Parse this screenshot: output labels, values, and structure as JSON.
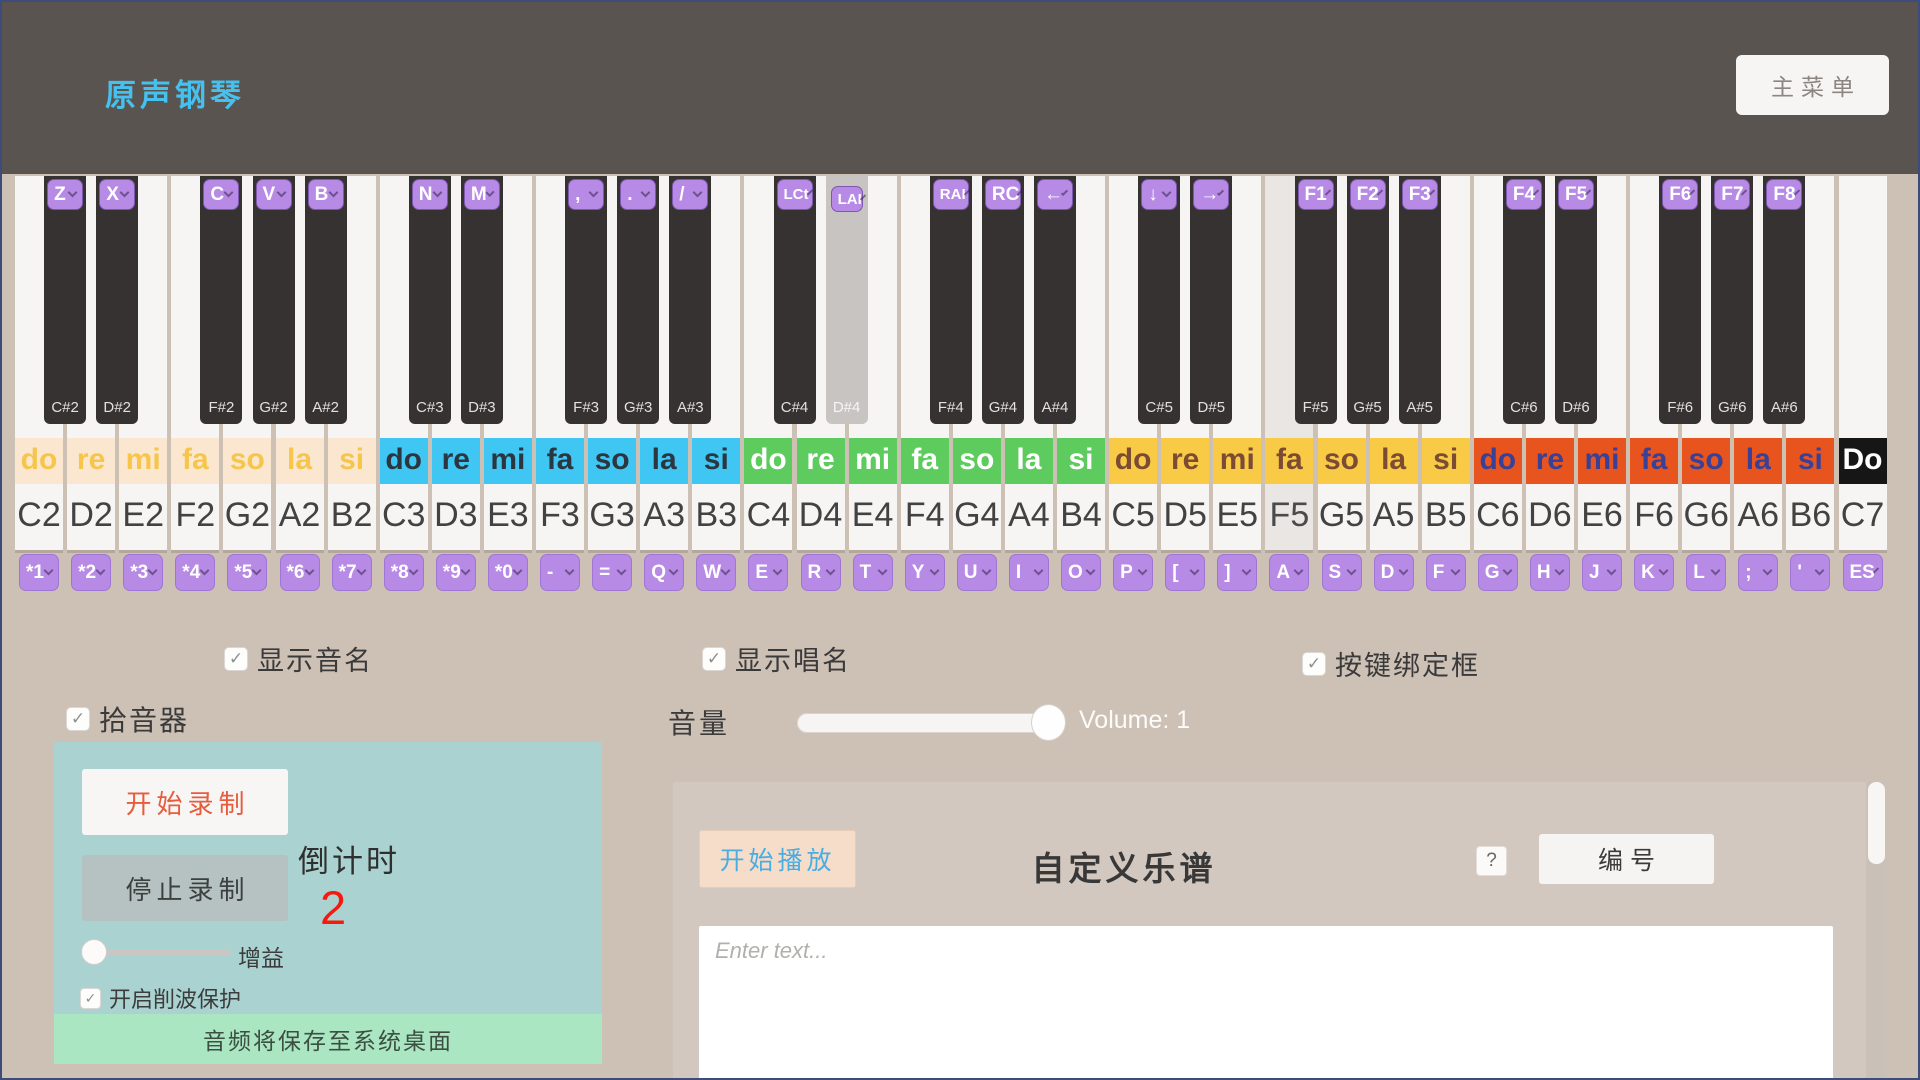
{
  "header": {
    "title": "原声钢琴",
    "menu_button": "主菜单",
    "title_color": "#45c1ef",
    "bg": "#5a5451"
  },
  "piano": {
    "white_keys": [
      {
        "note": "C2",
        "solfege": "do",
        "octave": 2,
        "badge": "*1"
      },
      {
        "note": "D2",
        "solfege": "re",
        "octave": 2,
        "badge": "*2"
      },
      {
        "note": "E2",
        "solfege": "mi",
        "octave": 2,
        "badge": "*3"
      },
      {
        "note": "F2",
        "solfege": "fa",
        "octave": 2,
        "badge": "*4"
      },
      {
        "note": "G2",
        "solfege": "so",
        "octave": 2,
        "badge": "*5"
      },
      {
        "note": "A2",
        "solfege": "la",
        "octave": 2,
        "badge": "*6"
      },
      {
        "note": "B2",
        "solfege": "si",
        "octave": 2,
        "badge": "*7"
      },
      {
        "note": "C3",
        "solfege": "do",
        "octave": 3,
        "badge": "*8"
      },
      {
        "note": "D3",
        "solfege": "re",
        "octave": 3,
        "badge": "*9"
      },
      {
        "note": "E3",
        "solfege": "mi",
        "octave": 3,
        "badge": "*0"
      },
      {
        "note": "F3",
        "solfege": "fa",
        "octave": 3,
        "badge": "-"
      },
      {
        "note": "G3",
        "solfege": "so",
        "octave": 3,
        "badge": "="
      },
      {
        "note": "A3",
        "solfege": "la",
        "octave": 3,
        "badge": "Q"
      },
      {
        "note": "B3",
        "solfege": "si",
        "octave": 3,
        "badge": "W"
      },
      {
        "note": "C4",
        "solfege": "do",
        "octave": 4,
        "badge": "E"
      },
      {
        "note": "D4",
        "solfege": "re",
        "octave": 4,
        "badge": "R"
      },
      {
        "note": "E4",
        "solfege": "mi",
        "octave": 4,
        "badge": "T"
      },
      {
        "note": "F4",
        "solfege": "fa",
        "octave": 4,
        "badge": "Y"
      },
      {
        "note": "G4",
        "solfege": "so",
        "octave": 4,
        "badge": "U"
      },
      {
        "note": "A4",
        "solfege": "la",
        "octave": 4,
        "badge": "I"
      },
      {
        "note": "B4",
        "solfege": "si",
        "octave": 4,
        "badge": "O"
      },
      {
        "note": "C5",
        "solfege": "do",
        "octave": 5,
        "badge": "P"
      },
      {
        "note": "D5",
        "solfege": "re",
        "octave": 5,
        "badge": "["
      },
      {
        "note": "E5",
        "solfege": "mi",
        "octave": 5,
        "badge": "]"
      },
      {
        "note": "F5",
        "solfege": "fa",
        "octave": 5,
        "badge": "A",
        "pressed": true
      },
      {
        "note": "G5",
        "solfege": "so",
        "octave": 5,
        "badge": "S"
      },
      {
        "note": "A5",
        "solfege": "la",
        "octave": 5,
        "badge": "D"
      },
      {
        "note": "B5",
        "solfege": "si",
        "octave": 5,
        "badge": "F"
      },
      {
        "note": "C6",
        "solfege": "do",
        "octave": 6,
        "badge": "G"
      },
      {
        "note": "D6",
        "solfege": "re",
        "octave": 6,
        "badge": "H"
      },
      {
        "note": "E6",
        "solfege": "mi",
        "octave": 6,
        "badge": "J"
      },
      {
        "note": "F6",
        "solfege": "fa",
        "octave": 6,
        "badge": "K"
      },
      {
        "note": "G6",
        "solfege": "so",
        "octave": 6,
        "badge": "L"
      },
      {
        "note": "A6",
        "solfege": "la",
        "octave": 6,
        "badge": ";"
      },
      {
        "note": "B6",
        "solfege": "si",
        "octave": 6,
        "badge": "'"
      },
      {
        "note": "C7",
        "solfege": "Do",
        "octave": 7,
        "badge": "ES"
      }
    ],
    "black_keys": [
      {
        "note": "C#2",
        "badge": "Z",
        "boundary": 0
      },
      {
        "note": "D#2",
        "badge": "X",
        "boundary": 1
      },
      {
        "note": "F#2",
        "badge": "C",
        "boundary": 3
      },
      {
        "note": "G#2",
        "badge": "V",
        "boundary": 4
      },
      {
        "note": "A#2",
        "badge": "B",
        "boundary": 5
      },
      {
        "note": "C#3",
        "badge": "N",
        "boundary": 7
      },
      {
        "note": "D#3",
        "badge": "M",
        "boundary": 8
      },
      {
        "note": "F#3",
        "badge": ",",
        "boundary": 10
      },
      {
        "note": "G#3",
        "badge": ".",
        "boundary": 11
      },
      {
        "note": "A#3",
        "badge": "/",
        "boundary": 12
      },
      {
        "note": "C#4",
        "badge": "LCt",
        "boundary": 14
      },
      {
        "note": "D#4",
        "badge": "LAI",
        "boundary": 15,
        "pressed": true
      },
      {
        "note": "F#4",
        "badge": "RAI",
        "boundary": 17
      },
      {
        "note": "G#4",
        "badge": "RC",
        "boundary": 18
      },
      {
        "note": "A#4",
        "badge": "←",
        "boundary": 19
      },
      {
        "note": "C#5",
        "badge": "↓",
        "boundary": 21
      },
      {
        "note": "D#5",
        "badge": "→",
        "boundary": 22
      },
      {
        "note": "F#5",
        "badge": "F1",
        "boundary": 24
      },
      {
        "note": "G#5",
        "badge": "F2",
        "boundary": 25
      },
      {
        "note": "A#5",
        "badge": "F3",
        "boundary": 26
      },
      {
        "note": "C#6",
        "badge": "F4",
        "boundary": 28
      },
      {
        "note": "D#6",
        "badge": "F5",
        "boundary": 29
      },
      {
        "note": "F#6",
        "badge": "F6",
        "boundary": 31
      },
      {
        "note": "G#6",
        "badge": "F7",
        "boundary": 32
      },
      {
        "note": "A#6",
        "badge": "F8",
        "boundary": 33
      }
    ],
    "octave_styles": {
      "2": {
        "bg": "#fbe7cf",
        "color": "#f6c54a"
      },
      "3": {
        "bg": "#3fc6f2",
        "color": "#2b3640"
      },
      "4": {
        "bg": "#5ecb5e",
        "color": "#ffffff"
      },
      "5": {
        "bg": "#f8ca45",
        "color": "#7b4b33"
      },
      "6": {
        "bg": "#e8541e",
        "color": "#3a4096"
      },
      "7": {
        "bg": "#161616",
        "color": "#ffffff"
      }
    },
    "badge_color": "#b78ae6"
  },
  "options": [
    {
      "label": "显示音名",
      "checked": true
    },
    {
      "label": "显示唱名",
      "checked": true
    },
    {
      "label": "按键绑定框",
      "checked": true
    }
  ],
  "recorder": {
    "pickup_label": "拾音器",
    "pickup_checked": true,
    "start_button": "开始录制",
    "stop_button": "停止录制",
    "gain_label": "增益",
    "clip_label": "开启削波保护",
    "clip_checked": true,
    "countdown_label": "倒计时",
    "countdown_value": "2",
    "save_note": "音频将保存至系统桌面",
    "panel_bg": "#a9d2d0",
    "strip_bg": "#a9e6c1",
    "start_color": "#e65c3c",
    "countdown_color": "#f5190e"
  },
  "volume": {
    "label": "音量",
    "value_text": "Volume: 1",
    "level": 1
  },
  "score": {
    "play_button": "开始播放",
    "title": "自定义乐谱",
    "help_button": "?",
    "number_button": "编号",
    "input_placeholder": "Enter text...",
    "input_value": ""
  },
  "icons": {
    "check": "✓"
  }
}
